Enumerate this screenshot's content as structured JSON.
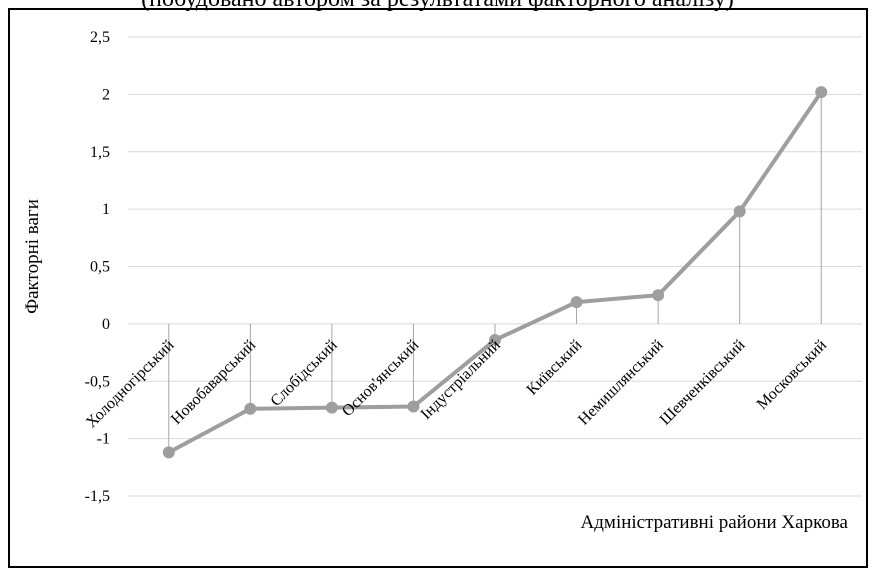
{
  "caption": "(побудовано автором за результатами факторного аналізу)",
  "chart_data": {
    "type": "line",
    "categories": [
      "Холодногірський",
      "Новобаварський",
      "Слобідський",
      "Основ'янський",
      "Індустріальний",
      "Київський",
      "Немишлянський",
      "Шевченківський",
      "Московський"
    ],
    "series": [
      {
        "values": [
          -1.12,
          -0.74,
          -0.73,
          -0.72,
          -0.14,
          0.19,
          0.25,
          0.98,
          2.02
        ]
      }
    ],
    "ylim": [
      -1.5,
      2.5
    ],
    "yticks": [
      2.5,
      2,
      1.5,
      1,
      0.5,
      0,
      -0.5,
      -1,
      -1.5
    ],
    "ytick_labels": [
      "2,5",
      "2",
      "1,5",
      "1",
      "0,5",
      "0",
      "-0,5",
      "-1",
      "-1,5"
    ],
    "xlabel": "Адміністративні райони Харкова",
    "ylabel": "Факторні ваги",
    "grid": true,
    "drop_lines": true,
    "colors": {
      "line": "#9e9e9e",
      "marker": "#9e9e9e",
      "grid": "#d9d9d9",
      "drop": "#a6a6a6"
    }
  }
}
